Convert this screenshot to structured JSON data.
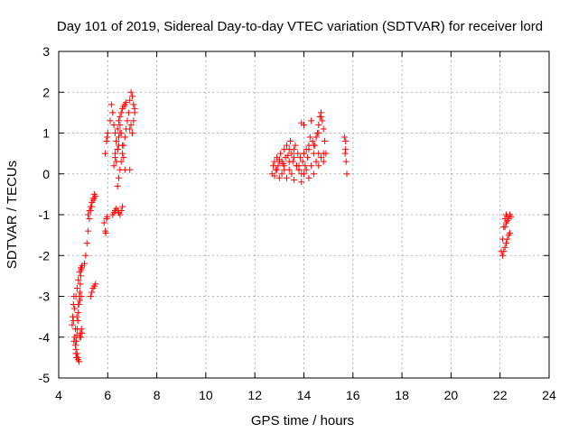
{
  "chart_data": {
    "type": "scatter",
    "title": "Day 101 of 2019, Sidereal Day-to-day VTEC variation (SDTVAR) for receiver lord",
    "xlabel": "GPS time / hours",
    "ylabel": "SDTVAR / TECUs",
    "xlim": [
      4,
      24
    ],
    "ylim": [
      -5,
      3
    ],
    "xticks": [
      4,
      6,
      8,
      10,
      12,
      14,
      16,
      18,
      20,
      22,
      24
    ],
    "yticks": [
      -5,
      -4,
      -3,
      -2,
      -1,
      0,
      1,
      2,
      3
    ],
    "grid": true,
    "marker": "+",
    "colors": {
      "series": "#ff0000",
      "grid": "#a0a0a0",
      "axis": "#000000"
    },
    "series": [
      {
        "name": "SDTVAR",
        "x": [
          4.55,
          4.57,
          4.6,
          4.62,
          4.65,
          4.68,
          4.7,
          4.72,
          4.75,
          4.78,
          4.8,
          4.83,
          4.85,
          4.88,
          4.9,
          4.93,
          4.95,
          4.6,
          4.65,
          4.7,
          4.75,
          4.8,
          4.85,
          4.9,
          4.62,
          4.68,
          4.74,
          4.8,
          4.86,
          4.92,
          4.7,
          4.72,
          4.74,
          4.76,
          4.78,
          4.8,
          4.82,
          4.84,
          4.86,
          4.88,
          4.9,
          4.92,
          4.94,
          4.96,
          5.05,
          5.1,
          5.15,
          5.2,
          5.25,
          5.3,
          5.35,
          5.4,
          5.45,
          5.2,
          5.25,
          5.3,
          5.35,
          5.4,
          5.45,
          5.5,
          5.3,
          5.35,
          5.4,
          5.45,
          5.5,
          5.85,
          5.9,
          5.92,
          5.95,
          5.98,
          5.9,
          5.95,
          5.98,
          6.0,
          6.1,
          6.15,
          6.2,
          6.25,
          6.3,
          6.35,
          6.4,
          6.45,
          6.5,
          6.2,
          6.25,
          6.3,
          6.35,
          6.4,
          6.45,
          6.5,
          6.55,
          6.6,
          6.25,
          6.3,
          6.35,
          6.4,
          6.45,
          6.5,
          6.55,
          6.6,
          6.65,
          6.7,
          6.75,
          6.4,
          6.45,
          6.5,
          6.55,
          6.6,
          6.65,
          6.7,
          6.75,
          6.8,
          6.85,
          6.9,
          6.95,
          7.0,
          7.05,
          7.1,
          6.9,
          6.95,
          7.0,
          7.05,
          7.1,
          6.3,
          6.35,
          6.4,
          6.45,
          6.5,
          6.55,
          6.6,
          6.65,
          6.7,
          6.9,
          12.7,
          12.75,
          12.8,
          12.85,
          12.9,
          12.95,
          13.0,
          13.05,
          13.1,
          13.15,
          13.2,
          13.25,
          13.3,
          13.35,
          13.4,
          13.45,
          13.5,
          13.55,
          13.6,
          13.65,
          13.7,
          13.75,
          13.8,
          13.85,
          13.9,
          13.95,
          14.0,
          14.05,
          14.1,
          14.15,
          14.2,
          14.25,
          14.3,
          14.35,
          14.4,
          14.45,
          14.5,
          14.55,
          14.6,
          14.65,
          14.7,
          14.75,
          14.8,
          14.85,
          14.9,
          12.8,
          12.9,
          13.0,
          13.1,
          13.2,
          13.3,
          13.4,
          13.5,
          13.6,
          13.7,
          13.8,
          13.9,
          14.0,
          14.1,
          14.2,
          14.3,
          14.4,
          14.5,
          14.6,
          14.7,
          14.8,
          13.0,
          13.2,
          13.4,
          13.6,
          13.8,
          14.0,
          14.2,
          14.4,
          14.6,
          14.8,
          13.9,
          14.0,
          14.5,
          14.6,
          14.7,
          15.65,
          15.7,
          15.72,
          15.75,
          15.7,
          15.68,
          22.05,
          22.1,
          22.15,
          22.2,
          22.25,
          22.3,
          22.35,
          22.4,
          22.45,
          22.1,
          22.15,
          22.2,
          22.25,
          22.3,
          22.35,
          22.4,
          22.2,
          22.25,
          22.3
        ],
        "y": [
          -3.7,
          -3.5,
          -3.2,
          -3.0,
          -4.0,
          -4.2,
          -4.4,
          -4.5,
          -4.4,
          -4.5,
          -4.55,
          -4.6,
          -4.0,
          -3.9,
          -4.0,
          -3.8,
          -3.9,
          -3.6,
          -3.3,
          -3.0,
          -2.8,
          -2.6,
          -2.4,
          -2.3,
          -4.1,
          -3.8,
          -3.5,
          -3.2,
          -3.1,
          -3.0,
          -4.3,
          -4.1,
          -3.95,
          -3.8,
          -3.6,
          -3.4,
          -3.2,
          -3.0,
          -2.9,
          -2.7,
          -2.5,
          -2.35,
          -2.3,
          -2.25,
          -2.2,
          -2.0,
          -1.7,
          -1.4,
          -1.1,
          -0.9,
          -0.8,
          -0.6,
          -0.5,
          -1.0,
          -0.9,
          -0.8,
          -0.7,
          -0.65,
          -0.6,
          -0.55,
          -3.0,
          -2.9,
          -2.8,
          -2.75,
          -2.7,
          -1.2,
          -1.4,
          -1.45,
          -1.1,
          -1.05,
          0.5,
          0.8,
          0.9,
          1.0,
          1.3,
          1.7,
          1.5,
          1.2,
          1.0,
          0.8,
          0.6,
          0.7,
          1.0,
          -1.0,
          -0.95,
          -0.9,
          -0.85,
          -0.9,
          -0.95,
          -1.0,
          -0.9,
          -0.8,
          0.2,
          0.5,
          0.8,
          1.1,
          1.3,
          1.4,
          1.5,
          1.6,
          1.65,
          1.7,
          1.75,
          -0.3,
          -0.1,
          0.1,
          0.3,
          0.5,
          0.7,
          0.9,
          1.1,
          1.3,
          1.5,
          1.8,
          2.0,
          1.9,
          1.7,
          1.5,
          1.1,
          1.2,
          1.0,
          1.3,
          1.6,
          0.4,
          0.3,
          0.6,
          0.9,
          1.2,
          1.0,
          0.7,
          0.4,
          0.1,
          0.1,
          0.0,
          0.2,
          0.3,
          0.1,
          0.4,
          0.2,
          0.35,
          0.5,
          0.3,
          0.25,
          0.6,
          0.4,
          0.7,
          0.45,
          0.6,
          0.8,
          0.5,
          0.3,
          0.6,
          0.7,
          0.2,
          0.5,
          0.1,
          0.4,
          0.0,
          0.3,
          0.5,
          0.2,
          0.6,
          0.4,
          0.7,
          0.9,
          1.3,
          0.8,
          0.5,
          0.7,
          0.9,
          1.0,
          1.2,
          1.4,
          1.5,
          1.3,
          1.1,
          0.8,
          0.5,
          -0.05,
          0.1,
          -0.1,
          0.0,
          0.2,
          -0.1,
          0.1,
          0.0,
          -0.15,
          0.2,
          0.1,
          -0.2,
          0.0,
          0.1,
          -0.1,
          0.2,
          0.0,
          0.3,
          0.2,
          0.4,
          0.3,
          0.3,
          0.1,
          0.3,
          0.4,
          0.2,
          0.5,
          0.6,
          0.7,
          0.5,
          0.5,
          1.25,
          1.2,
          0.9,
          1.0,
          1.4,
          0.9,
          0.6,
          0.3,
          0.0,
          0.8,
          0.5,
          -1.9,
          -1.6,
          -1.3,
          -1.1,
          -1.0,
          -1.05,
          -1.1,
          -1.0,
          -1.05,
          -2.0,
          -1.9,
          -1.8,
          -1.7,
          -1.6,
          -1.5,
          -1.45,
          -1.3,
          -1.2,
          -1.15
        ]
      }
    ]
  }
}
